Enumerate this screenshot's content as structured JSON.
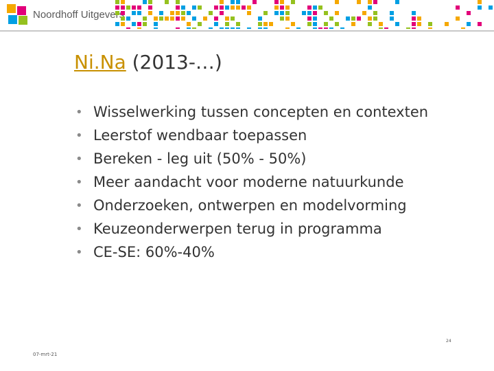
{
  "header": {
    "logo_text": "Noordhoff Uitgevers",
    "logo_colors": [
      "#f5a800",
      "#e2007a",
      "#009fe3",
      "#95c11f"
    ]
  },
  "slide": {
    "title_link": "Ni.Na",
    "title_rest": " (2013-…)",
    "bullets": [
      "Wisselwerking tussen concepten en contexten",
      "Leerstof wendbaar toepassen",
      "Bereken - leg uit (50% - 50%)",
      "Meer aandacht voor moderne natuurkunde",
      "Onderzoeken, ontwerpen en modelvorming",
      "Keuzeonderwerpen terug in programma",
      "CE-SE: 60%-40%"
    ],
    "bullet_symbol": "•"
  },
  "footer": {
    "page_number": "24",
    "date": "07-mrt-21"
  }
}
